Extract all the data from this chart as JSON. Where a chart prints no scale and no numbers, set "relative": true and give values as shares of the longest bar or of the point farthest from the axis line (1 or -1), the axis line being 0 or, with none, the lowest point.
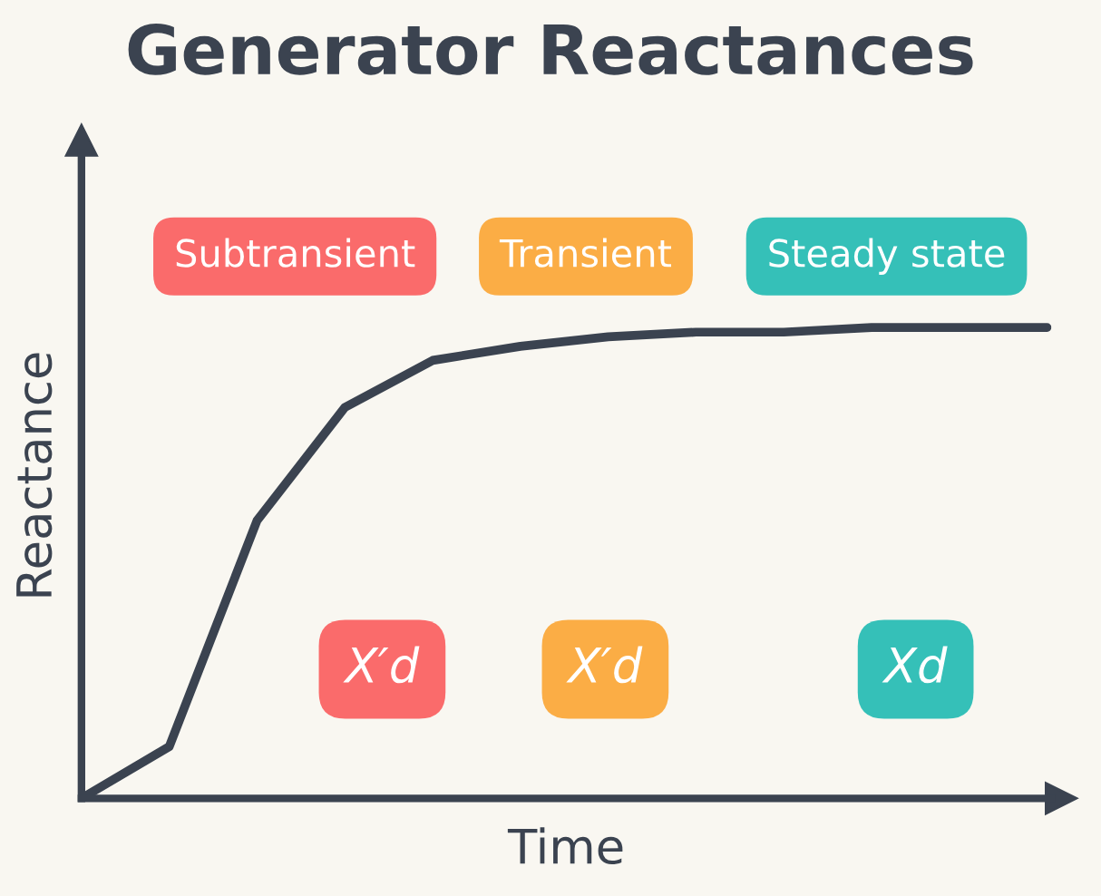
{
  "chart_data": {
    "type": "line",
    "title": "Generator Reactances",
    "xlabel": "Time",
    "ylabel": "Reactance",
    "relative": true,
    "color": "#3b4350",
    "categories": [
      null,
      null,
      null,
      null,
      null,
      null,
      null,
      null,
      null,
      null,
      null,
      null
    ],
    "values": [
      0,
      0.11,
      0.59,
      0.83,
      0.93,
      0.96,
      0.98,
      0.99,
      0.99,
      1.0,
      1.0,
      1.0
    ],
    "annotations": [
      "Subtransient",
      "Transient",
      "Steady state",
      "X′d",
      "X′d",
      "Xd"
    ]
  }
}
